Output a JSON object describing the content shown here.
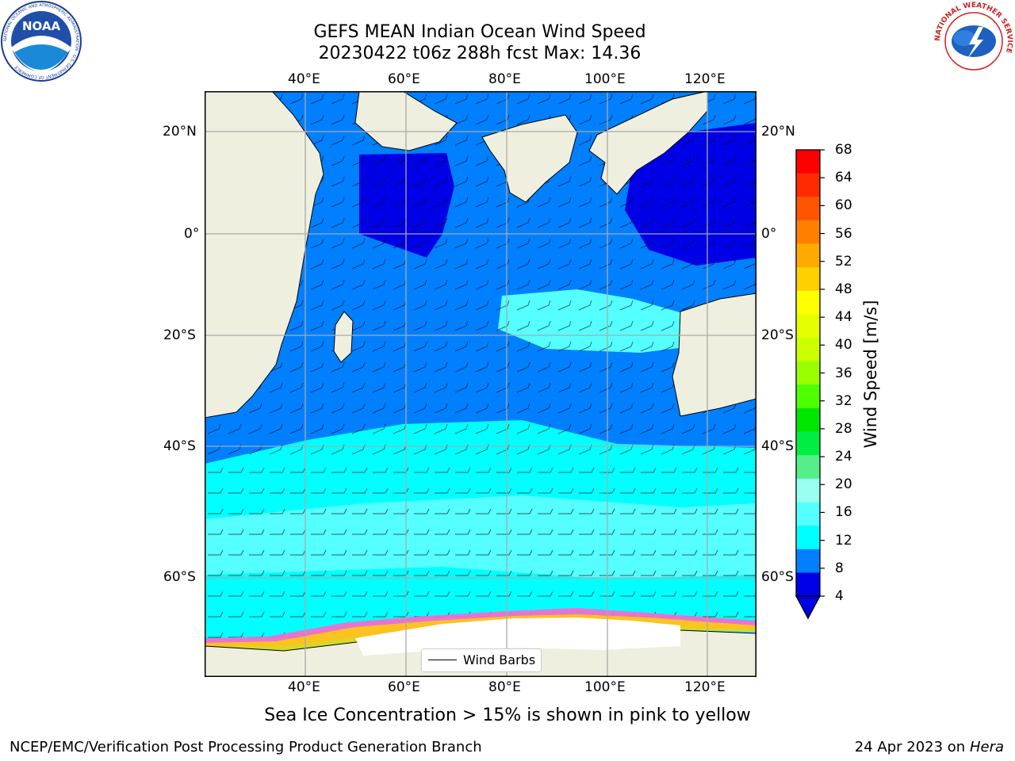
{
  "title": {
    "line1": "GEFS MEAN Indian Ocean Wind Speed",
    "line2": "20230422 t06z 288h fcst   Max: 14.36"
  },
  "axes": {
    "lon_ticks": [
      "40°E",
      "60°E",
      "80°E",
      "100°E",
      "120°E"
    ],
    "lat_ticks_left": [
      "20°N",
      "0°",
      "20°S",
      "40°S",
      "60°S"
    ],
    "lat_ticks_right": [
      "20°N",
      "0°",
      "20°S",
      "40°S",
      "60°S"
    ]
  },
  "colorbar": {
    "title": "Wind Speed [m/s]",
    "ticks": [
      "68",
      "64",
      "60",
      "56",
      "52",
      "48",
      "44",
      "40",
      "36",
      "32",
      "28",
      "24",
      "20",
      "16",
      "12",
      "8",
      "4"
    ],
    "colors": [
      "#ff0000",
      "#ff2a00",
      "#ff5500",
      "#ff8000",
      "#ffaa00",
      "#ffd000",
      "#ffff00",
      "#e6ff00",
      "#ccff00",
      "#99ff00",
      "#4dff00",
      "#00e600",
      "#00ee44",
      "#55ee88",
      "#99ffee",
      "#55ffff",
      "#00ffff",
      "#0080ff",
      "#0000e6"
    ]
  },
  "legend": {
    "label": "Wind Barbs"
  },
  "subcaption": "Sea Ice Concentration > 15% is shown in pink to yellow",
  "footer": {
    "left": "NCEP/EMC/Verification Post Processing Product Generation Branch",
    "right_prefix": "24 Apr 2023 on",
    "right_host": "Hera"
  },
  "logos": {
    "noaa_text": "NOAA",
    "noaa_ring": "NATIONAL OCEANIC AND ATMOSPHERIC ADMINISTRATION · U.S. DEPARTMENT OF COMMERCE",
    "nws_ring": "NATIONAL WEATHER SERVICE"
  },
  "map_colors": {
    "land": "#efefdf",
    "wind_4_8": "#0080ff",
    "wind_below_4": "#0000e6",
    "wind_8_12": "#00ffff",
    "wind_12_16": "#55ffff",
    "wind_16_20": "#99ffee",
    "sea_ice": "#ffffff"
  }
}
